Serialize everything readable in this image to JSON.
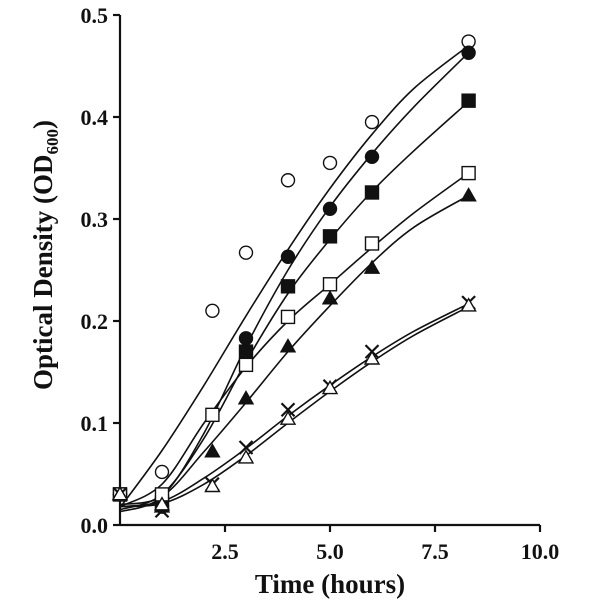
{
  "chart_data": {
    "type": "scatter",
    "title": "",
    "xlabel": "Time (hours)",
    "ylabel_main": "Optical Density (OD",
    "ylabel_sub": "600",
    "ylabel_close": ")",
    "xlim": [
      0,
      10
    ],
    "ylim": [
      0,
      0.5
    ],
    "x_ticks": [
      2.5,
      5.0,
      7.5,
      10.0
    ],
    "x_tick_labels": [
      "2.5",
      "5.0",
      "7.5",
      "10.0"
    ],
    "y_ticks": [
      0.0,
      0.1,
      0.2,
      0.3,
      0.4,
      0.5
    ],
    "y_tick_labels": [
      "0.0",
      "0.1",
      "0.2",
      "0.3",
      "0.4",
      "0.5"
    ],
    "grid": false,
    "legend": "none",
    "series": [
      {
        "marker": "circle-open",
        "points": [
          [
            0,
            0.03
          ],
          [
            1,
            0.052
          ],
          [
            2.2,
            0.21
          ],
          [
            3,
            0.267
          ],
          [
            4,
            0.338
          ],
          [
            5,
            0.355
          ],
          [
            6,
            0.395
          ],
          [
            8.3,
            0.474
          ]
        ],
        "fit": [
          [
            0,
            0.017
          ],
          [
            1,
            0.073
          ],
          [
            2,
            0.137
          ],
          [
            3,
            0.205
          ],
          [
            4,
            0.27
          ],
          [
            5,
            0.33
          ],
          [
            6,
            0.383
          ],
          [
            7,
            0.428
          ],
          [
            8.3,
            0.47
          ]
        ]
      },
      {
        "marker": "circle-filled",
        "points": [
          [
            0,
            0.03
          ],
          [
            1,
            0.018
          ],
          [
            3,
            0.183
          ],
          [
            4,
            0.263
          ],
          [
            5,
            0.31
          ],
          [
            6,
            0.361
          ],
          [
            8.3,
            0.463
          ]
        ],
        "fit": [
          [
            0,
            0.013
          ],
          [
            1,
            0.028
          ],
          [
            2,
            0.09
          ],
          [
            3,
            0.175
          ],
          [
            4,
            0.25
          ],
          [
            5,
            0.312
          ],
          [
            6,
            0.364
          ],
          [
            7,
            0.41
          ],
          [
            8.3,
            0.463
          ]
        ]
      },
      {
        "marker": "square-filled",
        "points": [
          [
            0,
            0.03
          ],
          [
            1,
            0.022
          ],
          [
            3,
            0.17
          ],
          [
            4,
            0.234
          ],
          [
            5,
            0.283
          ],
          [
            6,
            0.326
          ],
          [
            8.3,
            0.416
          ]
        ],
        "fit": [
          [
            0,
            0.015
          ],
          [
            1,
            0.03
          ],
          [
            2,
            0.085
          ],
          [
            3,
            0.16
          ],
          [
            4,
            0.227
          ],
          [
            5,
            0.28
          ],
          [
            6,
            0.327
          ],
          [
            7,
            0.367
          ],
          [
            8.3,
            0.415
          ]
        ]
      },
      {
        "marker": "square-open",
        "points": [
          [
            0,
            0.03
          ],
          [
            1,
            0.03
          ],
          [
            2.2,
            0.108
          ],
          [
            3,
            0.157
          ],
          [
            4,
            0.204
          ],
          [
            5,
            0.236
          ],
          [
            6,
            0.276
          ],
          [
            8.3,
            0.345
          ]
        ],
        "fit": [
          [
            0,
            0.018
          ],
          [
            1,
            0.04
          ],
          [
            2,
            0.1
          ],
          [
            3,
            0.155
          ],
          [
            4,
            0.2
          ],
          [
            5,
            0.236
          ],
          [
            6,
            0.272
          ],
          [
            7,
            0.306
          ],
          [
            8.3,
            0.345
          ]
        ]
      },
      {
        "marker": "triangle-filled",
        "points": [
          [
            0,
            0.03
          ],
          [
            1,
            0.018
          ],
          [
            2.2,
            0.072
          ],
          [
            3,
            0.124
          ],
          [
            4,
            0.175
          ],
          [
            5,
            0.222
          ],
          [
            6,
            0.252
          ],
          [
            8.3,
            0.323
          ]
        ],
        "fit": [
          [
            0,
            0.02
          ],
          [
            1,
            0.028
          ],
          [
            2,
            0.072
          ],
          [
            3,
            0.12
          ],
          [
            4,
            0.17
          ],
          [
            5,
            0.215
          ],
          [
            6,
            0.257
          ],
          [
            7,
            0.292
          ],
          [
            8.3,
            0.323
          ]
        ]
      },
      {
        "marker": "x",
        "points": [
          [
            0,
            0.03
          ],
          [
            1,
            0.014
          ],
          [
            2.2,
            0.04
          ],
          [
            3,
            0.076
          ],
          [
            4,
            0.113
          ],
          [
            5,
            0.136
          ],
          [
            6,
            0.17
          ],
          [
            8.3,
            0.218
          ]
        ],
        "fit": [
          [
            0,
            0.018
          ],
          [
            1,
            0.023
          ],
          [
            2,
            0.046
          ],
          [
            3,
            0.075
          ],
          [
            4,
            0.107
          ],
          [
            5,
            0.137
          ],
          [
            6,
            0.165
          ],
          [
            7,
            0.19
          ],
          [
            8.3,
            0.217
          ]
        ]
      },
      {
        "marker": "triangle-open",
        "points": [
          [
            0,
            0.03
          ],
          [
            1,
            0.02
          ],
          [
            2.2,
            0.038
          ],
          [
            3,
            0.066
          ],
          [
            4,
            0.104
          ],
          [
            5,
            0.134
          ],
          [
            6,
            0.163
          ],
          [
            8.3,
            0.215
          ]
        ],
        "fit": [
          [
            0,
            0.018
          ],
          [
            1,
            0.021
          ],
          [
            2,
            0.04
          ],
          [
            3,
            0.068
          ],
          [
            4,
            0.1
          ],
          [
            5,
            0.131
          ],
          [
            6,
            0.16
          ],
          [
            7,
            0.186
          ],
          [
            8.3,
            0.214
          ]
        ]
      }
    ]
  }
}
